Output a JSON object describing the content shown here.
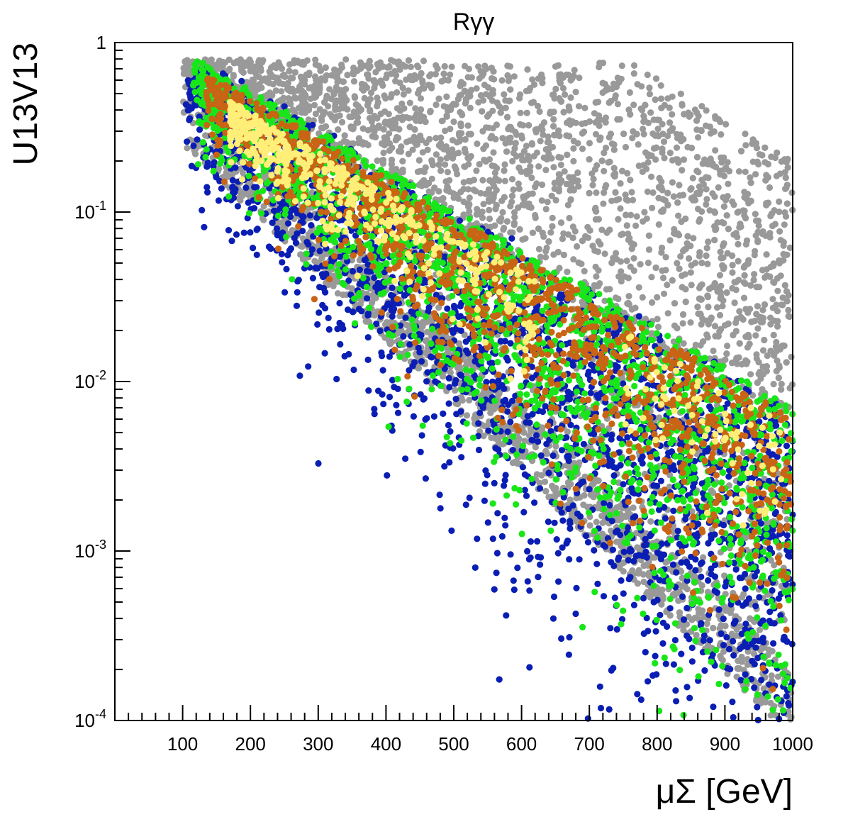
{
  "chart_data": {
    "type": "scatter",
    "title": "Rγγ",
    "xlabel": "μΣ [GeV]",
    "ylabel": "U13V13",
    "x_scale": "linear",
    "y_scale": "log",
    "xlim": [
      0,
      1000
    ],
    "ylim": [
      0.0001,
      1
    ],
    "x_ticks": [
      "100",
      "200",
      "300",
      "400",
      "500",
      "600",
      "700",
      "800",
      "900",
      "1000"
    ],
    "y_ticks": [
      {
        "base": "1",
        "exp": ""
      },
      {
        "base": "10",
        "exp": "-1"
      },
      {
        "base": "10",
        "exp": "-2"
      },
      {
        "base": "10",
        "exp": "-3"
      },
      {
        "base": "10",
        "exp": "-4"
      }
    ],
    "grid": false,
    "legend": "none",
    "series": [
      {
        "color": "#999999",
        "region": "allowed parameter space, broad band below the line log10(U13V13) = -1.1 * (mu - 100)/450",
        "x_range": [
          100,
          1000
        ],
        "y_range": [
          0.0001,
          1
        ],
        "samples": [
          [
            120,
            0.6
          ],
          [
            200,
            0.15
          ],
          [
            300,
            0.03
          ],
          [
            400,
            0.004
          ],
          [
            500,
            0.002
          ],
          [
            600,
            0.3
          ],
          [
            700,
            0.5
          ],
          [
            800,
            0.06
          ],
          [
            900,
            0.0005
          ],
          [
            1000,
            0.0002
          ]
        ]
      },
      {
        "color": "#0a1eb4",
        "region": "band along upper edge, spreading downward at large mu",
        "x_range": [
          110,
          1000
        ],
        "y_range": [
          0.0002,
          1
        ],
        "samples": [
          [
            150,
            0.7
          ],
          [
            250,
            0.3
          ],
          [
            350,
            0.08
          ],
          [
            450,
            0.04
          ],
          [
            550,
            0.03
          ],
          [
            650,
            0.02
          ],
          [
            750,
            0.01
          ],
          [
            850,
            0.004
          ],
          [
            950,
            0.012
          ],
          [
            1000,
            0.001
          ]
        ]
      },
      {
        "color": "#19e619",
        "region": "narrow diagonal band",
        "x_range": [
          120,
          1000
        ],
        "y_range": [
          0.0015,
          1
        ],
        "samples": [
          [
            140,
            0.9
          ],
          [
            200,
            0.5
          ],
          [
            300,
            0.15
          ],
          [
            400,
            0.08
          ],
          [
            500,
            0.04
          ],
          [
            600,
            0.02
          ],
          [
            700,
            0.015
          ],
          [
            800,
            0.01
          ],
          [
            900,
            0.006
          ],
          [
            1000,
            0.008
          ]
        ]
      },
      {
        "color": "#c86414",
        "region": "narrower diagonal band",
        "x_range": [
          140,
          1000
        ],
        "y_range": [
          0.003,
          0.9
        ],
        "samples": [
          [
            150,
            0.8
          ],
          [
            200,
            0.45
          ],
          [
            300,
            0.15
          ],
          [
            400,
            0.05
          ],
          [
            500,
            0.03
          ],
          [
            600,
            0.02
          ],
          [
            700,
            0.012
          ],
          [
            800,
            0.008
          ],
          [
            900,
            0.006
          ],
          [
            1000,
            0.005
          ]
        ]
      },
      {
        "color": "#ffee77",
        "region": "core of the band",
        "x_range": [
          170,
          1000
        ],
        "y_range": [
          0.006,
          0.6
        ],
        "samples": [
          [
            180,
            0.5
          ],
          [
            220,
            0.3
          ],
          [
            270,
            0.2
          ],
          [
            320,
            0.1
          ],
          [
            400,
            0.06
          ],
          [
            480,
            0.04
          ],
          [
            550,
            0.025
          ],
          [
            800,
            0.012
          ],
          [
            950,
            0.01
          ],
          [
            990,
            0.009
          ]
        ]
      }
    ]
  }
}
